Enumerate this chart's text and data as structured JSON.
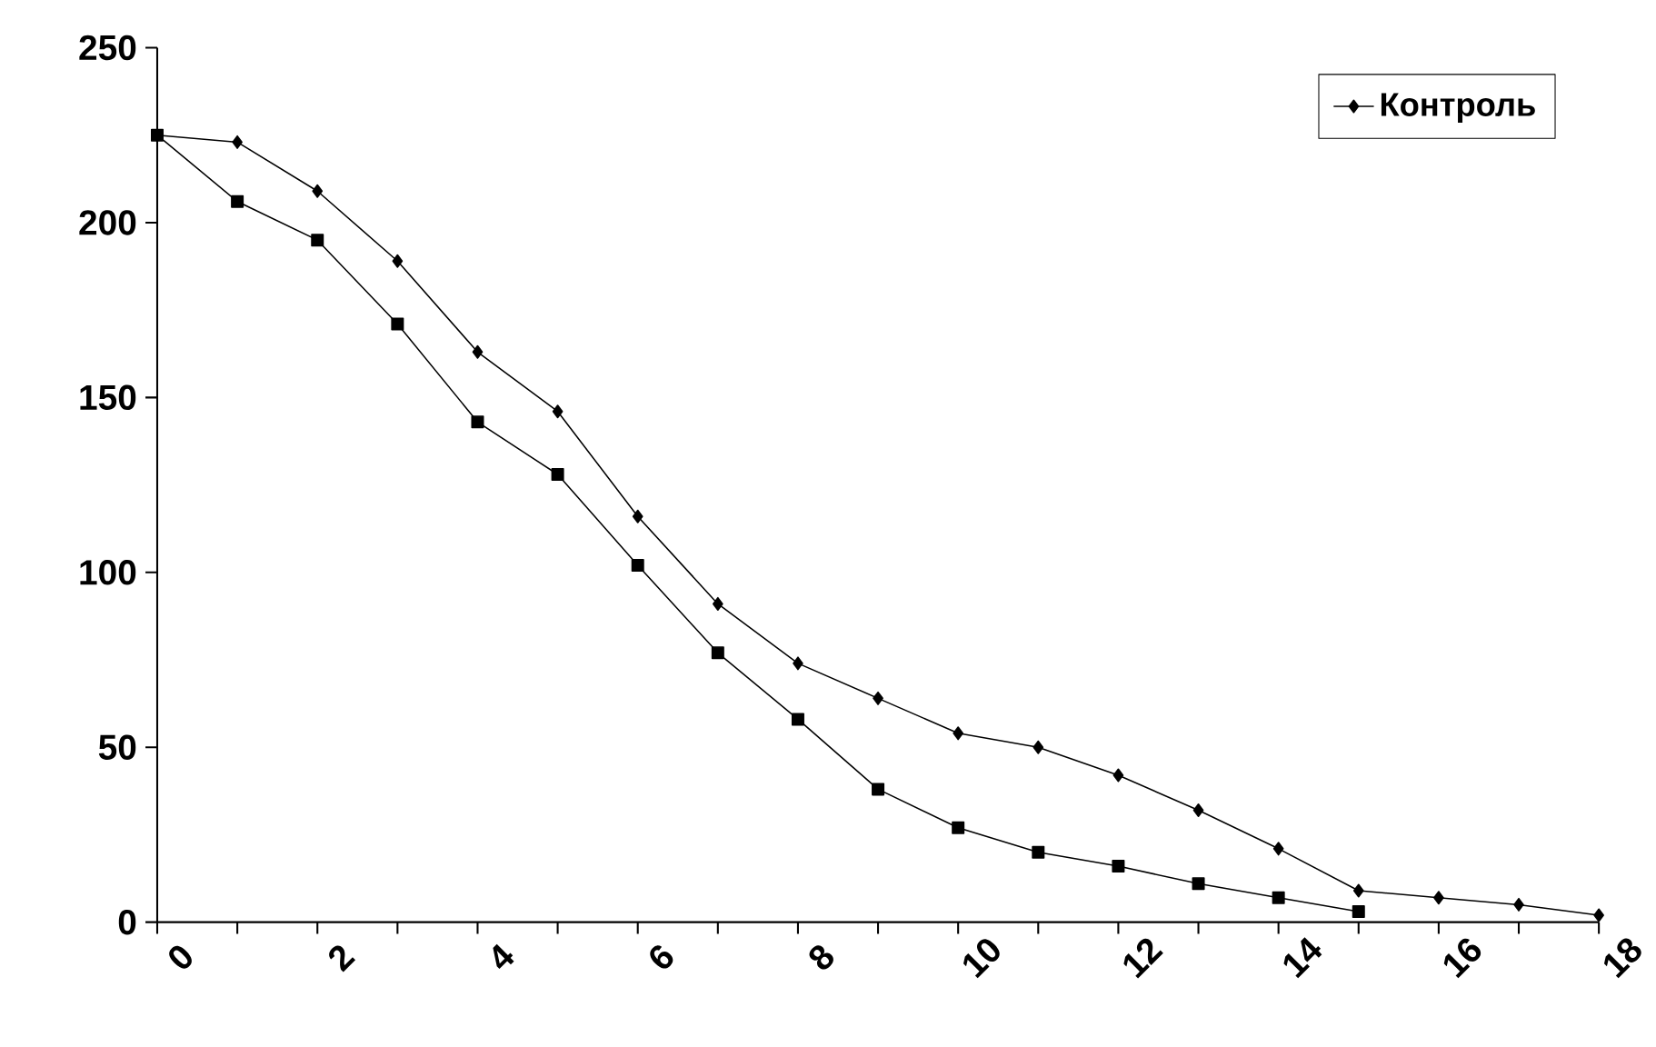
{
  "chart_data": {
    "type": "line",
    "x": [
      0,
      1,
      2,
      3,
      4,
      5,
      6,
      7,
      8,
      9,
      10,
      11,
      12,
      13,
      14,
      15,
      16,
      17,
      18
    ],
    "series": [
      {
        "color": "#000000",
        "marker": "square",
        "x": [
          0,
          1,
          2,
          3,
          4,
          5,
          6,
          7,
          8,
          9,
          10,
          11,
          12,
          13,
          14,
          15
        ],
        "values": [
          225,
          206,
          195,
          171,
          143,
          128,
          102,
          77,
          58,
          38,
          27,
          20,
          16,
          11,
          7,
          3
        ]
      },
      {
        "name": "Контроль",
        "color": "#000000",
        "marker": "diamond",
        "values": [
          225,
          223,
          209,
          189,
          163,
          146,
          116,
          91,
          74,
          64,
          54,
          50,
          42,
          32,
          21,
          9,
          7,
          5,
          2
        ]
      }
    ],
    "xlim": [
      0,
      18
    ],
    "ylim": [
      0,
      250
    ],
    "xticks": [
      0,
      {
        "value": 1,
        "label": null
      },
      2,
      {
        "value": 3,
        "label": null
      },
      4,
      {
        "value": 5,
        "label": null
      },
      6,
      {
        "value": 7,
        "label": null
      },
      8,
      {
        "value": 9,
        "label": null
      },
      10,
      {
        "value": 11,
        "label": null
      },
      12,
      {
        "value": 13,
        "label": null
      },
      14,
      {
        "value": 15,
        "label": null
      },
      16,
      {
        "value": 17,
        "label": null
      },
      18
    ],
    "yticks": [
      0,
      50,
      100,
      150,
      200,
      250
    ],
    "legend": "top right",
    "grid": false,
    "line_style": "solid"
  }
}
